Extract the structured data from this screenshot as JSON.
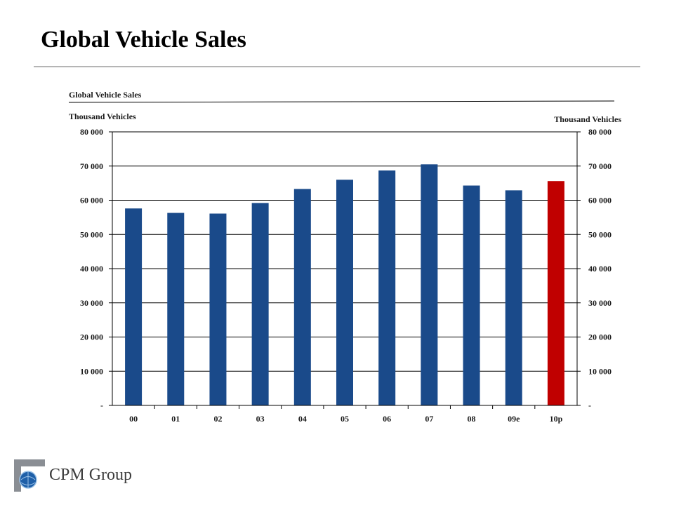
{
  "slide": {
    "title": "Global Vehicle Sales"
  },
  "chart_data": {
    "type": "bar",
    "title": "Global Vehicle Sales",
    "ylabel_left": "Thousand Vehicles",
    "ylabel_right": "Thousand Vehicles",
    "categories": [
      "00",
      "01",
      "02",
      "03",
      "04",
      "05",
      "06",
      "07",
      "08",
      "09e",
      "10p"
    ],
    "series": [
      {
        "values": [
          57600,
          56300,
          56100,
          59200,
          63300,
          66000,
          68700,
          70500,
          64300,
          62900,
          65600
        ],
        "colors": [
          "#1a4a8a",
          "#1a4a8a",
          "#1a4a8a",
          "#1a4a8a",
          "#1a4a8a",
          "#1a4a8a",
          "#1a4a8a",
          "#1a4a8a",
          "#1a4a8a",
          "#1a4a8a",
          "#c00000"
        ]
      }
    ],
    "ylim": [
      0,
      80000
    ],
    "yticks": [
      0,
      10000,
      20000,
      30000,
      40000,
      50000,
      60000,
      70000,
      80000
    ],
    "ytick_labels": [
      "-",
      "10 000",
      "20 000",
      "30 000",
      "40 000",
      "50 000",
      "60 000",
      "70 000",
      "80 000"
    ],
    "grid": true,
    "legend": "none"
  },
  "footer": {
    "logo_text": "CPM Group"
  }
}
